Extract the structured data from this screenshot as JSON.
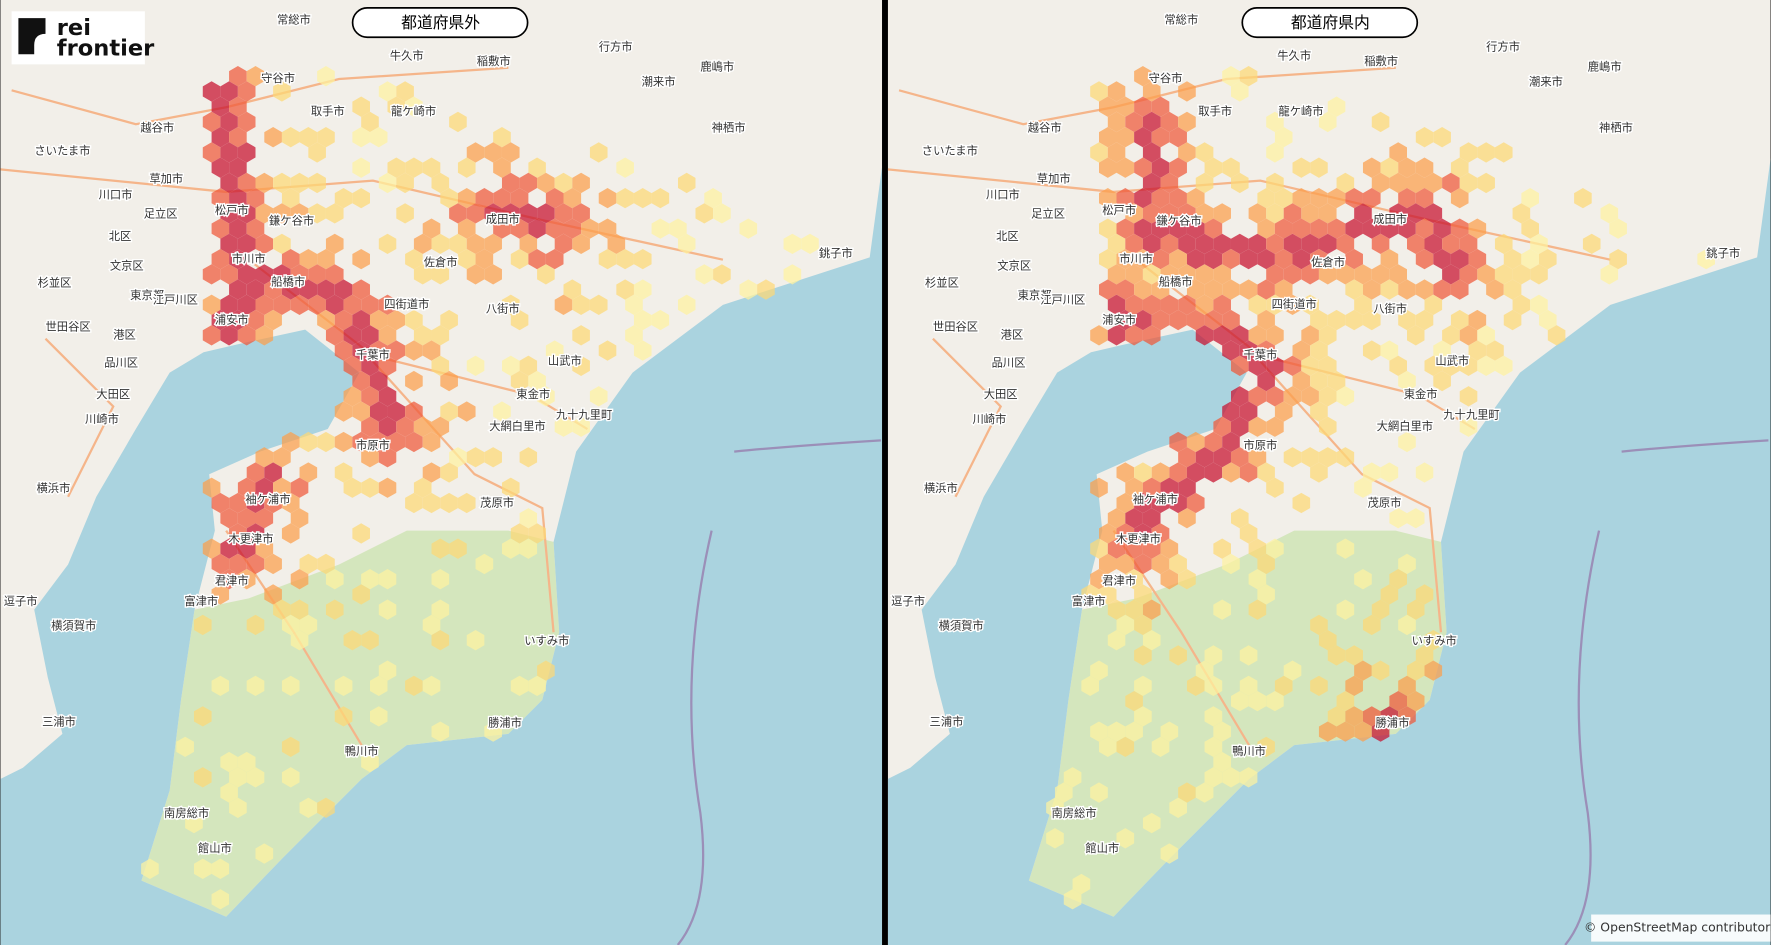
{
  "logo": {
    "line1": "rei",
    "line2": "frontier"
  },
  "panels": [
    {
      "title": "都道府県外"
    },
    {
      "title": "都道府県内"
    }
  ],
  "map_labels": [
    "常総市",
    "守谷市",
    "取手市",
    "龍ケ崎市",
    "牛久市",
    "稲敷市",
    "行方市",
    "鹿嶋市",
    "潮来市",
    "神栖市",
    "越谷市",
    "さいたま市",
    "草加市",
    "川口市",
    "足立区",
    "北区",
    "文京区",
    "東京都",
    "杉並区",
    "江戸川区",
    "世田谷区",
    "港区",
    "品川区",
    "大田区",
    "川崎市",
    "横浜市",
    "逗子市",
    "横須賀市",
    "三浦市",
    "松戸市",
    "市川市",
    "船橋市",
    "浦安市",
    "千葉市",
    "成田市",
    "佐倉市",
    "八街市",
    "銚子市",
    "東金市",
    "大網白里市",
    "茂原市",
    "市原市",
    "木更津市",
    "君津市",
    "富津市",
    "袖ケ浦市",
    "いすみ市",
    "勝浦市",
    "鴨川市",
    "南房総市",
    "館山市",
    "鎌ケ谷市",
    "四街道市",
    "九十九里町",
    "山武市"
  ],
  "attribution": "© OpenStreetMap contributors"
}
